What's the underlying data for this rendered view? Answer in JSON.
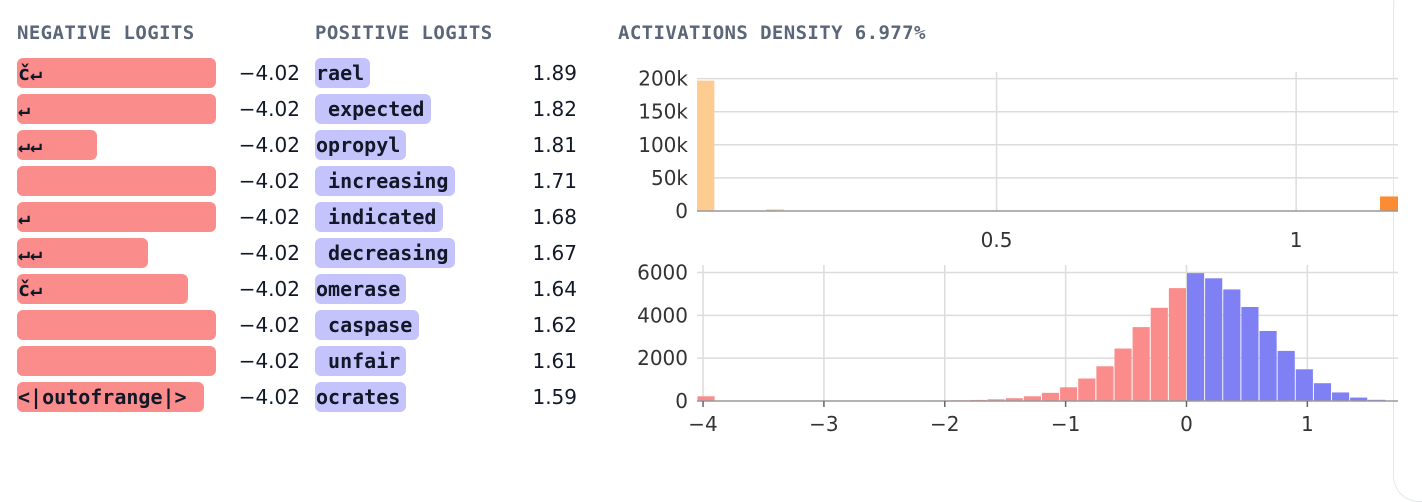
{
  "headers": {
    "negative": "NEGATIVE LOGITS",
    "positive": "POSITIVE LOGITS",
    "density": "ACTIVATIONS DENSITY 6.977%"
  },
  "negative_logits": [
    {
      "token": "č↵",
      "value": "−4.02",
      "bar_fraction": 1.0
    },
    {
      "token": "↵",
      "value": "−4.02",
      "bar_fraction": 1.0
    },
    {
      "token": "↵↵",
      "value": "−4.02",
      "bar_fraction": 0.4
    },
    {
      "token": "",
      "value": "−4.02",
      "bar_fraction": 1.0
    },
    {
      "token": "↵",
      "value": "−4.02",
      "bar_fraction": 1.0
    },
    {
      "token": "↵↵",
      "value": "−4.02",
      "bar_fraction": 0.66
    },
    {
      "token": "č↵",
      "value": "−4.02",
      "bar_fraction": 0.86
    },
    {
      "token": "",
      "value": "−4.02",
      "bar_fraction": 1.0
    },
    {
      "token": "",
      "value": "−4.02",
      "bar_fraction": 1.0
    },
    {
      "token": "<|outofrange|>",
      "value": "−4.02",
      "bar_fraction": 0.94
    }
  ],
  "positive_logits": [
    {
      "token": "rael",
      "value": "1.89"
    },
    {
      "token": " expected",
      "value": "1.82"
    },
    {
      "token": "opropyl",
      "value": "1.81"
    },
    {
      "token": " increasing",
      "value": "1.71"
    },
    {
      "token": " indicated",
      "value": "1.68"
    },
    {
      "token": " decreasing",
      "value": "1.67"
    },
    {
      "token": "omerase",
      "value": "1.64"
    },
    {
      "token": " caspase",
      "value": "1.62"
    },
    {
      "token": " unfair",
      "value": "1.61"
    },
    {
      "token": "ocrates",
      "value": "1.59"
    }
  ],
  "chart_data": [
    {
      "type": "bar",
      "xlim": [
        0,
        1.17
      ],
      "ylim": [
        0,
        210000
      ],
      "xticks": [
        0.5,
        1
      ],
      "yticks": [
        0,
        50000,
        100000,
        150000,
        200000
      ],
      "ytick_labels": [
        "0",
        "50k",
        "100k",
        "150k",
        "200k"
      ],
      "xtick_labels": [
        "0.5",
        "1"
      ],
      "grid": true,
      "series": [
        {
          "color": "#fecb91",
          "bars": [
            [
              0.0,
              0.029,
              197000
            ],
            [
              0.115,
              0.145,
              2500
            ]
          ]
        },
        {
          "color": "#fb8c33",
          "bars": [
            [
              1.14,
              1.17,
              22000
            ]
          ]
        }
      ]
    },
    {
      "type": "bar",
      "xlim": [
        -4.05,
        1.75
      ],
      "ylim": [
        0,
        6350
      ],
      "xticks": [
        -4,
        -3,
        -2,
        -1,
        0,
        1
      ],
      "xtick_labels": [
        "−4",
        "−3",
        "−2",
        "−1",
        "0",
        "1"
      ],
      "yticks": [
        0,
        2000,
        4000,
        6000
      ],
      "ytick_labels": [
        "0",
        "2000",
        "4000",
        "6000"
      ],
      "grid": true,
      "bin_width": 0.15,
      "series": [
        {
          "color": "#fb8c8c",
          "x_start": [
            -4.05,
            -2.4,
            -2.25,
            -2.1,
            -1.95,
            -1.8,
            -1.65,
            -1.5,
            -1.35,
            -1.2,
            -1.05,
            -0.9,
            -0.75,
            -0.6,
            -0.45,
            -0.3,
            -0.15
          ],
          "values": [
            220,
            8,
            15,
            25,
            35,
            50,
            80,
            130,
            220,
            380,
            640,
            1050,
            1620,
            2450,
            3450,
            4350,
            5270
          ]
        },
        {
          "color": "#c4c3fb",
          "x_start": [
            0.0,
            0.15,
            0.3,
            0.45,
            0.6,
            0.75,
            0.9,
            1.05,
            1.2,
            1.35,
            1.5
          ],
          "values": [
            5300,
            5100,
            4650,
            3900,
            2850,
            1900,
            1050,
            480,
            180,
            60,
            20
          ]
        },
        {
          "color": "#8080f5",
          "x_start": [
            0.0,
            0.15,
            0.3,
            0.45,
            0.6,
            0.75,
            0.9,
            1.05,
            1.2,
            1.35,
            1.5
          ],
          "values": [
            5970,
            5730,
            5210,
            4390,
            3270,
            2340,
            1480,
            830,
            400,
            160,
            55
          ]
        }
      ]
    }
  ]
}
